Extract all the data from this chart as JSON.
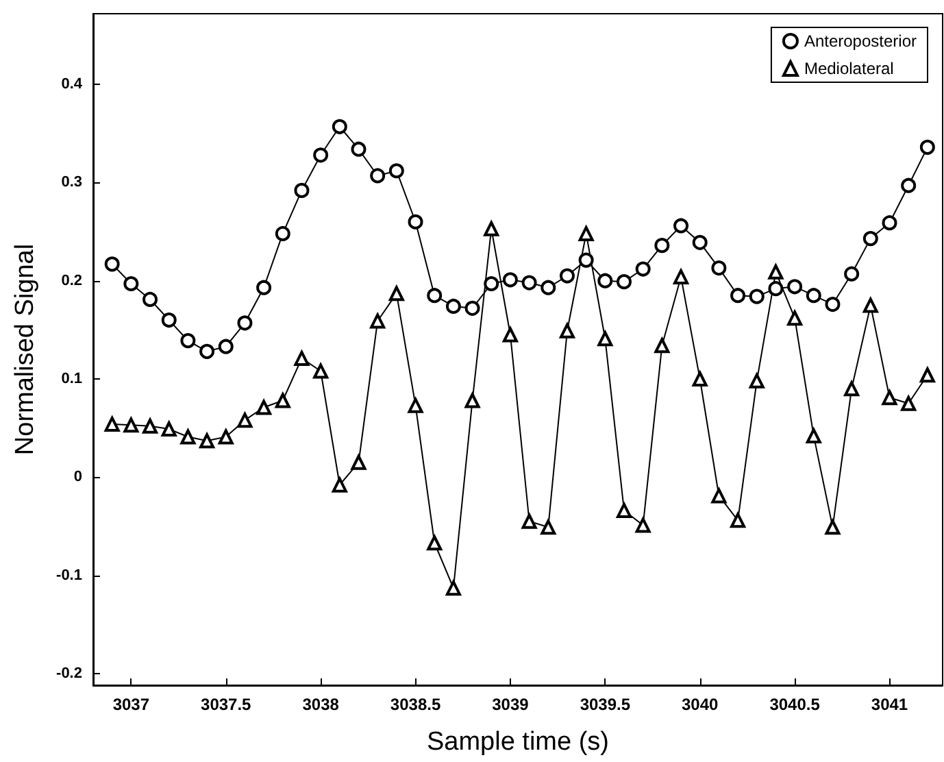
{
  "chart_data": {
    "type": "line",
    "xlabel": "Sample time (s)",
    "ylabel": "Normalised Signal",
    "x": [
      3036.9,
      3037.0,
      3037.1,
      3037.2,
      3037.3,
      3037.4,
      3037.5,
      3037.6,
      3037.7,
      3037.8,
      3037.9,
      3038.0,
      3038.1,
      3038.2,
      3038.3,
      3038.4,
      3038.5,
      3038.6,
      3038.7,
      3038.8,
      3038.9,
      3039.0,
      3039.1,
      3039.2,
      3039.3,
      3039.4,
      3039.5,
      3039.6,
      3039.7,
      3039.8,
      3039.9,
      3040.0,
      3040.1,
      3040.2,
      3040.3,
      3040.4,
      3040.5,
      3040.6,
      3040.7,
      3040.8,
      3040.9,
      3041.0,
      3041.1,
      3041.2
    ],
    "series": [
      {
        "name": "Anteroposterior",
        "color": "#000000",
        "marker": "circle",
        "values": [
          0.217,
          0.197,
          0.181,
          0.16,
          0.139,
          0.128,
          0.133,
          0.157,
          0.193,
          0.248,
          0.292,
          0.328,
          0.357,
          0.334,
          0.307,
          0.312,
          0.26,
          0.185,
          0.174,
          0.172,
          0.197,
          0.201,
          0.198,
          0.193,
          0.205,
          0.221,
          0.2,
          0.199,
          0.212,
          0.236,
          0.256,
          0.239,
          0.213,
          0.185,
          0.184,
          0.192,
          0.194,
          0.185,
          0.176,
          0.207,
          0.243,
          0.259,
          0.297,
          0.336
        ]
      },
      {
        "name": "Mediolateral",
        "color": "#000000",
        "marker": "triangle",
        "values": [
          0.054,
          0.053,
          0.052,
          0.049,
          0.041,
          0.037,
          0.041,
          0.058,
          0.071,
          0.078,
          0.121,
          0.108,
          -0.008,
          0.015,
          0.159,
          0.187,
          0.073,
          -0.067,
          -0.113,
          0.078,
          0.253,
          0.145,
          -0.045,
          -0.051,
          0.149,
          0.248,
          0.141,
          -0.034,
          -0.049,
          0.134,
          0.204,
          0.1,
          -0.019,
          -0.044,
          0.098,
          0.209,
          0.162,
          0.042,
          -0.051,
          0.09,
          0.175,
          0.081,
          0.075,
          0.104
        ]
      }
    ],
    "xlim": [
      3036.8,
      3041.28
    ],
    "xticks": [
      3037,
      3037.5,
      3038,
      3038.5,
      3039,
      3039.5,
      3040,
      3040.5,
      3041
    ],
    "ylim": [
      -0.212,
      0.472
    ],
    "yticks": [
      -0.2,
      -0.1,
      0,
      0.1,
      0.2,
      0.3,
      0.4
    ],
    "grid": false,
    "legend": "top right",
    "line_style": "solid"
  }
}
